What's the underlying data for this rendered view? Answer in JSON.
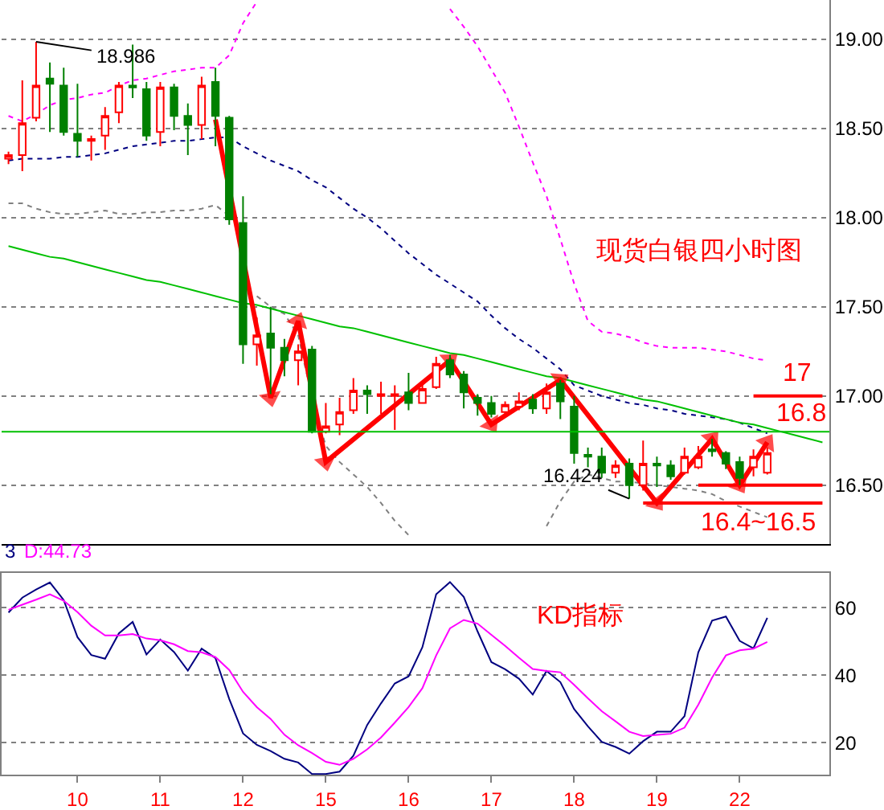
{
  "chart_data": [
    {
      "type": "candlestick",
      "annotations": [
        "现货白银四小时图",
        {
          "text": "18.986",
          "y": 18.986
        },
        {
          "text": "16.424",
          "y": 16.424
        }
      ],
      "categories": [
        null,
        null,
        null,
        null,
        null,
        "10",
        null,
        null,
        null,
        null,
        null,
        "11",
        null,
        null,
        null,
        null,
        null,
        "12",
        null,
        null,
        null,
        null,
        null,
        "15",
        null,
        null,
        null,
        null,
        null,
        "16",
        null,
        null,
        null,
        null,
        null,
        "17",
        null,
        null,
        null,
        null,
        null,
        "18",
        null,
        null,
        null,
        null,
        null,
        "19",
        null,
        null,
        null,
        null,
        null,
        "22",
        null,
        null,
        null,
        null,
        null,
        null
      ],
      "ohlc": [
        [
          18.33,
          18.37,
          18.3,
          18.35
        ],
        [
          18.35,
          18.77,
          18.26,
          18.53
        ],
        [
          18.56,
          18.986,
          18.54,
          18.74
        ],
        [
          18.78,
          18.87,
          18.48,
          18.75
        ],
        [
          18.74,
          18.84,
          18.46,
          18.48
        ],
        [
          18.47,
          18.75,
          18.34,
          18.43
        ],
        [
          18.43,
          18.46,
          18.32,
          18.44
        ],
        [
          18.46,
          18.62,
          18.38,
          18.57
        ],
        [
          18.59,
          18.76,
          18.53,
          18.74
        ],
        [
          18.74,
          18.97,
          18.67,
          18.73
        ],
        [
          18.72,
          18.76,
          18.43,
          18.46
        ],
        [
          18.48,
          18.76,
          18.4,
          18.73
        ],
        [
          18.73,
          18.75,
          18.49,
          18.57
        ],
        [
          18.57,
          18.64,
          18.35,
          18.52
        ],
        [
          18.52,
          18.79,
          18.44,
          18.74
        ],
        [
          18.76,
          18.84,
          18.4,
          18.57
        ],
        [
          18.56,
          18.57,
          17.96,
          17.99
        ],
        [
          17.97,
          18.12,
          17.18,
          17.29
        ],
        [
          17.29,
          17.44,
          17.17,
          17.34
        ],
        [
          17.35,
          17.5,
          17.01,
          17.27
        ],
        [
          17.27,
          17.32,
          17.11,
          17.2
        ],
        [
          17.2,
          17.29,
          17.06,
          17.25
        ],
        [
          17.26,
          17.28,
          16.79,
          16.8
        ],
        [
          16.8,
          16.96,
          16.79,
          16.83
        ],
        [
          16.84,
          16.99,
          16.78,
          16.91
        ],
        [
          16.92,
          17.1,
          16.9,
          17.03
        ],
        [
          17.03,
          17.06,
          16.9,
          17.01
        ],
        [
          17.0,
          17.08,
          16.9,
          17.01
        ],
        [
          17.0,
          17.06,
          16.81,
          17.01
        ],
        [
          17.02,
          17.13,
          16.92,
          16.96
        ],
        [
          16.96,
          17.07,
          16.96,
          17.04
        ],
        [
          17.05,
          17.22,
          17.04,
          17.18
        ],
        [
          17.2,
          17.23,
          17.1,
          17.12
        ],
        [
          17.12,
          17.14,
          16.93,
          17.02
        ],
        [
          16.99,
          17.01,
          16.89,
          16.96
        ],
        [
          16.96,
          17.0,
          16.88,
          16.9
        ],
        [
          16.91,
          16.97,
          16.9,
          16.95
        ],
        [
          16.94,
          17.02,
          16.92,
          16.97
        ],
        [
          16.98,
          17.01,
          16.9,
          16.93
        ],
        [
          16.93,
          17.07,
          16.9,
          17.02
        ],
        [
          17.07,
          17.09,
          16.87,
          16.97
        ],
        [
          16.94,
          17.0,
          16.62,
          16.68
        ],
        [
          16.67,
          16.71,
          16.6,
          16.66
        ],
        [
          16.66,
          16.71,
          16.54,
          16.57
        ],
        [
          16.57,
          16.64,
          16.54,
          16.61
        ],
        [
          16.62,
          16.65,
          16.424,
          16.5
        ],
        [
          16.5,
          16.75,
          16.47,
          16.62
        ],
        [
          16.62,
          16.66,
          16.49,
          16.61
        ],
        [
          16.61,
          16.64,
          16.53,
          16.55
        ],
        [
          16.57,
          16.71,
          16.56,
          16.66
        ],
        [
          16.6,
          16.72,
          16.59,
          16.66
        ],
        [
          16.7,
          16.76,
          16.66,
          16.69
        ],
        [
          16.68,
          16.69,
          16.59,
          16.62
        ],
        [
          16.63,
          16.66,
          16.5,
          16.54
        ],
        [
          16.6,
          16.7,
          16.55,
          16.66
        ],
        [
          16.57,
          16.71,
          16.56,
          16.68
        ],
        null,
        null,
        null,
        null
      ],
      "colors": [
        "#ff0000",
        "#ff0000",
        "#ff0000",
        "#008000",
        "#008000",
        "#008000",
        "#ff0000",
        "#ff0000",
        "#ff0000",
        "#008000",
        "#008000",
        "#ff0000",
        "#008000",
        "#008000",
        "#ff0000",
        "#008000",
        "#008000",
        "#008000",
        "#ff0000",
        "#008000",
        "#008000",
        "#ff0000",
        "#008000",
        "#ff0000",
        "#ff0000",
        "#ff0000",
        "#008000",
        "#ff0000",
        "#ff0000",
        "#008000",
        "#ff0000",
        "#ff0000",
        "#008000",
        "#008000",
        "#008000",
        "#008000",
        "#ff0000",
        "#ff0000",
        "#008000",
        "#ff0000",
        "#008000",
        "#008000",
        "#008000",
        "#008000",
        "#ff0000",
        "#008000",
        "#ff0000",
        "#008000",
        "#008000",
        "#ff0000",
        "#ff0000",
        "#008000",
        "#008000",
        "#008000",
        "#ff0000",
        "#ff0000",
        null,
        null,
        null,
        null
      ],
      "series": [
        {
          "type": "line",
          "color": "#ff00ff",
          "line_style": "dashed",
          "values": [
            18.57,
            18.54,
            18.58,
            18.63,
            18.66,
            18.67,
            18.69,
            18.7,
            18.74,
            18.77,
            18.78,
            18.8,
            18.82,
            18.83,
            18.84,
            18.84,
            18.91,
            19.09,
            19.21,
            null,
            null,
            null,
            null,
            null,
            null,
            null,
            null,
            null,
            null,
            null,
            null,
            null,
            19.17,
            19.07,
            18.96,
            18.83,
            18.7,
            18.51,
            18.31,
            18.12,
            17.88,
            17.63,
            17.42,
            17.36,
            17.35,
            17.33,
            17.3,
            17.28,
            17.27,
            17.27,
            17.27,
            17.26,
            17.25,
            17.23,
            17.21,
            17.2,
            null,
            null,
            null,
            null
          ]
        },
        {
          "type": "line",
          "color": "#000080",
          "line_style": "dashed",
          "values": [
            18.32,
            18.33,
            18.33,
            18.33,
            18.34,
            18.34,
            18.35,
            18.36,
            18.38,
            18.4,
            18.41,
            18.42,
            18.43,
            18.43,
            18.44,
            18.45,
            18.45,
            18.4,
            18.36,
            18.32,
            18.29,
            18.26,
            18.21,
            18.17,
            18.11,
            18.05,
            18.0,
            17.94,
            17.87,
            17.8,
            17.74,
            17.68,
            17.63,
            17.58,
            17.53,
            17.45,
            17.38,
            17.32,
            17.27,
            17.21,
            17.15,
            17.06,
            17.03,
            17.0,
            16.98,
            16.96,
            16.95,
            16.93,
            16.92,
            16.9,
            16.89,
            16.88,
            16.87,
            16.85,
            16.82,
            16.79,
            null,
            null,
            null,
            null
          ]
        },
        {
          "type": "line",
          "color": "#808080",
          "line_style": "dashed",
          "values": [
            18.08,
            18.08,
            18.05,
            18.03,
            18.02,
            18.02,
            18.03,
            18.04,
            18.02,
            18.02,
            18.03,
            18.03,
            18.04,
            18.04,
            18.05,
            18.07,
            18.01,
            null,
            17.56,
            17.5,
            17.46,
            17.34,
            16.99,
            16.72,
            16.63,
            16.56,
            16.49,
            16.4,
            16.3,
            16.22,
            null,
            null,
            null,
            null,
            null,
            null,
            null,
            null,
            null,
            16.27,
            16.41,
            16.52,
            16.56,
            16.54,
            16.52,
            16.52,
            16.51,
            16.5,
            16.49,
            16.48,
            16.47,
            16.45,
            16.41,
            16.38,
            16.35,
            16.32,
            null,
            null,
            null,
            null
          ]
        },
        {
          "type": "line",
          "color": "#00c000",
          "line_style": "solid",
          "values": [
            17.84,
            17.82,
            17.8,
            17.78,
            17.77,
            17.75,
            17.73,
            17.71,
            17.69,
            17.67,
            17.65,
            17.64,
            17.62,
            17.6,
            17.58,
            17.56,
            17.54,
            17.52,
            17.51,
            17.49,
            17.47,
            17.45,
            17.43,
            17.41,
            17.39,
            17.38,
            17.36,
            17.34,
            17.32,
            17.3,
            17.28,
            17.26,
            17.24,
            17.23,
            17.21,
            17.19,
            17.17,
            17.15,
            17.13,
            17.11,
            17.1,
            17.08,
            17.06,
            17.04,
            17.02,
            17.0,
            16.98,
            16.97,
            16.95,
            16.93,
            16.91,
            16.89,
            16.87,
            16.85,
            16.84,
            16.82,
            16.8,
            16.78,
            16.76,
            16.74
          ]
        },
        {
          "type": "line",
          "color": "#ff0000",
          "line_style": "solid",
          "marker": "triangle",
          "values": [
            null,
            null,
            null,
            null,
            null,
            null,
            null,
            null,
            null,
            null,
            null,
            null,
            null,
            null,
            null,
            18.55,
            null,
            null,
            null,
            16.99,
            null,
            17.42,
            null,
            16.63,
            null,
            null,
            null,
            null,
            null,
            null,
            null,
            null,
            17.2,
            null,
            null,
            16.84,
            null,
            null,
            null,
            null,
            17.09,
            null,
            null,
            null,
            null,
            null,
            null,
            16.4,
            null,
            null,
            null,
            16.76,
            null,
            16.5,
            null,
            16.74,
            null,
            null,
            null,
            null
          ]
        },
        {
          "type": "line",
          "name": "17",
          "color": "#ff0000",
          "line_style": "solid",
          "values": [
            null,
            null,
            null,
            null,
            null,
            null,
            null,
            null,
            null,
            null,
            null,
            null,
            null,
            null,
            null,
            null,
            null,
            null,
            null,
            null,
            null,
            null,
            null,
            null,
            null,
            null,
            null,
            null,
            null,
            null,
            null,
            null,
            null,
            null,
            null,
            null,
            null,
            null,
            null,
            null,
            null,
            null,
            null,
            null,
            null,
            null,
            null,
            null,
            null,
            null,
            null,
            null,
            null,
            null,
            17,
            17,
            17,
            17,
            17,
            17
          ]
        },
        {
          "type": "line",
          "color": "#ff0000",
          "line_style": "solid",
          "values": [
            null,
            null,
            null,
            null,
            null,
            null,
            null,
            null,
            null,
            null,
            null,
            null,
            null,
            null,
            null,
            null,
            null,
            null,
            null,
            null,
            null,
            null,
            null,
            null,
            null,
            null,
            null,
            null,
            null,
            null,
            null,
            null,
            null,
            null,
            null,
            null,
            null,
            null,
            null,
            null,
            null,
            null,
            null,
            null,
            null,
            null,
            null,
            null,
            null,
            null,
            16.5,
            16.5,
            16.5,
            16.5,
            16.5,
            16.5,
            16.5,
            16.5,
            16.5,
            16.5
          ]
        },
        {
          "type": "line",
          "name": "16.4~16.5",
          "color": "#ff0000",
          "line_style": "solid",
          "values": [
            null,
            null,
            null,
            null,
            null,
            null,
            null,
            null,
            null,
            null,
            null,
            null,
            null,
            null,
            null,
            null,
            null,
            null,
            null,
            null,
            null,
            null,
            null,
            null,
            null,
            null,
            null,
            null,
            null,
            null,
            null,
            null,
            null,
            null,
            null,
            null,
            null,
            null,
            null,
            null,
            null,
            null,
            null,
            null,
            null,
            null,
            16.4,
            16.4,
            16.4,
            16.4,
            16.4,
            16.4,
            16.4,
            16.4,
            16.4,
            16.4,
            16.4,
            16.4,
            16.4,
            16.4
          ]
        }
      ],
      "ref_lines": [
        {
          "axis": "y",
          "value": 16.8,
          "label": "16.8",
          "color": "#00c000"
        }
      ],
      "ylim": [
        16.17,
        19.22
      ],
      "yticks": [
        {
          "value": 19,
          "label": "19.00"
        },
        {
          "value": 18.5,
          "label": "18.50"
        },
        {
          "value": 18,
          "label": "18.00"
        },
        {
          "value": 17.5,
          "label": "17.50"
        },
        {
          "value": 17,
          "label": "17.00"
        },
        {
          "value": 16.5,
          "label": "16.50"
        }
      ],
      "tick_labels": "y",
      "grid": "y"
    },
    {
      "type": "line",
      "annotations": [
        "KD指标"
      ],
      "categories": [
        null,
        null,
        null,
        null,
        null,
        "10",
        null,
        null,
        null,
        null,
        null,
        "11",
        null,
        null,
        null,
        null,
        null,
        "12",
        null,
        null,
        null,
        null,
        null,
        "15",
        null,
        null,
        null,
        null,
        null,
        "16",
        null,
        null,
        null,
        null,
        null,
        "17",
        null,
        null,
        null,
        null,
        null,
        "18",
        null,
        null,
        null,
        null,
        null,
        "19",
        null,
        null,
        null,
        null,
        null,
        "22",
        null,
        null,
        null,
        null,
        null,
        null
      ],
      "series": [
        {
          "name": "3",
          "color": "#000080",
          "values": [
            58.6,
            63.0,
            65.4,
            67.5,
            62.3,
            51.3,
            46.0,
            44.9,
            52.4,
            55.8,
            46.2,
            50.6,
            46.9,
            41.4,
            47.9,
            45.1,
            33.0,
            22.8,
            19.4,
            17.6,
            15.3,
            14.2,
            10.8,
            10.8,
            11.5,
            16.2,
            25.3,
            31.7,
            37.6,
            39.7,
            48.3,
            64.0,
            67.6,
            63.2,
            53.0,
            43.9,
            41.8,
            39.0,
            34.3,
            41.3,
            38.0,
            30.0,
            24.9,
            20.3,
            18.8,
            16.8,
            20.5,
            23.3,
            23.3,
            27.9,
            46.8,
            56.2,
            57.4,
            50.2,
            48.0,
            57.0,
            null,
            null,
            null,
            null
          ]
        },
        {
          "name": "D:44.73",
          "color": "#ff00ff",
          "values": [
            59.4,
            60.9,
            62.4,
            64.0,
            62.1,
            58.7,
            54.7,
            51.8,
            51.8,
            52.2,
            50.9,
            50.4,
            49.2,
            47.2,
            46.8,
            45.4,
            41.6,
            35.1,
            30.6,
            27.1,
            22.4,
            19.3,
            17.0,
            14.4,
            13.5,
            15.3,
            18.1,
            21.6,
            26.0,
            30.6,
            36.2,
            45.9,
            53.9,
            56.4,
            55.3,
            52.0,
            48.7,
            45.2,
            41.9,
            41.3,
            40.9,
            37.2,
            33.2,
            29.4,
            26.4,
            23.3,
            22.0,
            22.4,
            22.7,
            24.5,
            31.3,
            39.3,
            45.9,
            47.4,
            47.9,
            49.9,
            null,
            null,
            null,
            null
          ]
        }
      ],
      "ylim": [
        10.6,
        70.4
      ],
      "yticks": [
        20,
        40,
        60
      ],
      "legend": "top left",
      "grid": "y"
    }
  ]
}
